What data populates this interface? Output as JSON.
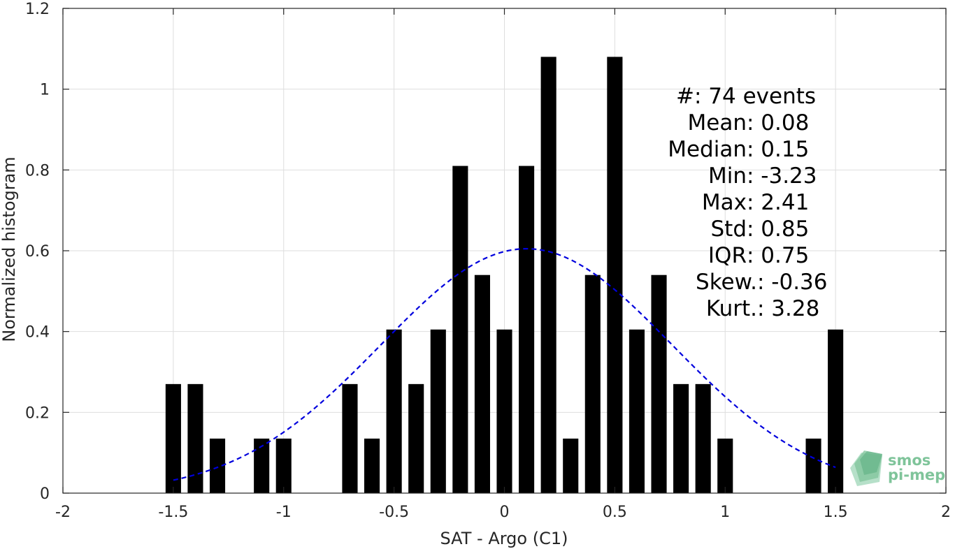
{
  "chart_data": {
    "type": "bar",
    "xlabel": "SAT - Argo (C1)",
    "ylabel": "Normalized histogram",
    "xlim": [
      -2,
      2
    ],
    "ylim": [
      0,
      1.2
    ],
    "grid": true,
    "xticks": [
      -2,
      -1.5,
      -1,
      -0.5,
      0,
      0.5,
      1,
      1.5,
      2
    ],
    "xtick_labels": [
      "-2",
      "-1.5",
      "-1",
      "-0.5",
      "0",
      "0.5",
      "1",
      "1.5",
      "2"
    ],
    "yticks": [
      0,
      0.2,
      0.4,
      0.6,
      0.8,
      1,
      1.2
    ],
    "ytick_labels": [
      "0",
      "0.2",
      "0.4",
      "0.6",
      "0.8",
      "1",
      "1.2"
    ],
    "bar_color": "#000000",
    "bars": {
      "x": [
        -1.5,
        -1.4,
        -1.3,
        -1.1,
        -1.0,
        -0.7,
        -0.6,
        -0.5,
        -0.4,
        -0.3,
        -0.2,
        -0.1,
        0.0,
        0.1,
        0.2,
        0.3,
        0.4,
        0.5,
        0.6,
        0.7,
        0.8,
        0.9,
        1.0,
        1.4,
        1.5
      ],
      "values": [
        0.27,
        0.27,
        0.135,
        0.135,
        0.135,
        0.27,
        0.135,
        0.405,
        0.27,
        0.405,
        0.81,
        0.54,
        0.405,
        0.81,
        1.08,
        0.135,
        0.54,
        1.08,
        0.405,
        0.54,
        0.27,
        0.27,
        0.135,
        0.135,
        0.405
      ]
    },
    "fit": {
      "style": "dashed",
      "color": "#0000dd",
      "x_range": [
        -1.5,
        1.5
      ],
      "mean": 0.1,
      "peak": 0.605,
      "sigma": 0.66
    },
    "stats": [
      {
        "name": "#  ",
        "value": ": 74 events"
      },
      {
        "name": "Mean ",
        "value": ": 0.08"
      },
      {
        "name": "Median ",
        "value": ": 0.15"
      },
      {
        "name": "Min ",
        "value": ": -3.23"
      },
      {
        "name": "Max ",
        "value": ": 2.41"
      },
      {
        "name": "Std ",
        "value": ": 0.85"
      },
      {
        "name": "IQR ",
        "value": ": 0.75"
      },
      {
        "name": "Skew. ",
        "value": ": -0.36"
      },
      {
        "name": "Kurt. ",
        "value": ": 3.28"
      }
    ]
  },
  "logo": {
    "line1": "smos",
    "line2": "pi-mep"
  }
}
